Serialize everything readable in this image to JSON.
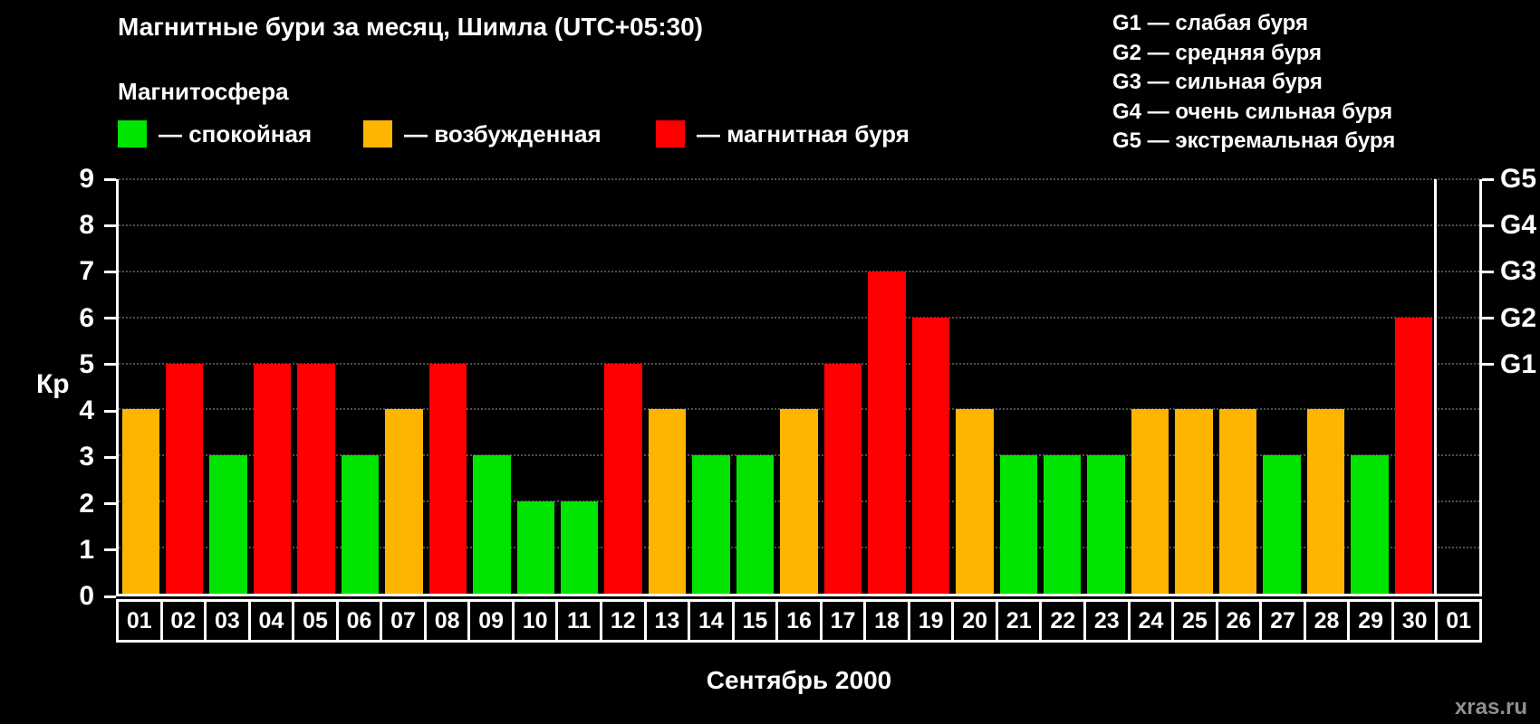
{
  "header": {
    "title": "Магнитные бури за месяц, Шимла (UTC+05:30)",
    "subtitle": "Магнитосфера"
  },
  "legend": {
    "items": [
      {
        "name": "quiet",
        "label": "— спокойная",
        "color": "#00e400"
      },
      {
        "name": "excited",
        "label": "— возбужденная",
        "color": "#ffb400"
      },
      {
        "name": "storm",
        "label": "— магнитная буря",
        "color": "#ff0000"
      }
    ]
  },
  "g_scale_legend": {
    "lines": [
      "G1 — слабая буря",
      "G2 — средняя буря",
      "G3 — сильная буря",
      "G4 — очень сильная буря",
      "G5 — экстремальная буря"
    ]
  },
  "footer": {
    "watermark": "xras.ru"
  },
  "chart_data": {
    "type": "bar",
    "title": "Магнитные бури за месяц, Шимла (UTC+05:30)",
    "xlabel": "Сентябрь 2000",
    "ylabel": "Кр",
    "ylim": [
      0,
      9
    ],
    "yticks": [
      0,
      1,
      2,
      3,
      4,
      5,
      6,
      7,
      8,
      9
    ],
    "grid": "dotted horizontal",
    "legend_position": "top",
    "right_axis": [
      {
        "label": "G1",
        "value": 5
      },
      {
        "label": "G2",
        "value": 6
      },
      {
        "label": "G3",
        "value": 7
      },
      {
        "label": "G4",
        "value": 8
      },
      {
        "label": "G5",
        "value": 9
      }
    ],
    "categories": [
      "01",
      "02",
      "03",
      "04",
      "05",
      "06",
      "07",
      "08",
      "09",
      "10",
      "11",
      "12",
      "13",
      "14",
      "15",
      "16",
      "17",
      "18",
      "19",
      "20",
      "21",
      "22",
      "23",
      "24",
      "25",
      "26",
      "27",
      "28",
      "29",
      "30",
      "01"
    ],
    "values": [
      4,
      5,
      3,
      5,
      5,
      3,
      4,
      5,
      3,
      2,
      2,
      5,
      4,
      3,
      3,
      4,
      5,
      7,
      6,
      4,
      3,
      3,
      3,
      4,
      4,
      4,
      3,
      4,
      3,
      6,
      null
    ],
    "color_rule": "Kp<=3 quiet green, Kp==4 excited orange, Kp>=5 storm red"
  }
}
